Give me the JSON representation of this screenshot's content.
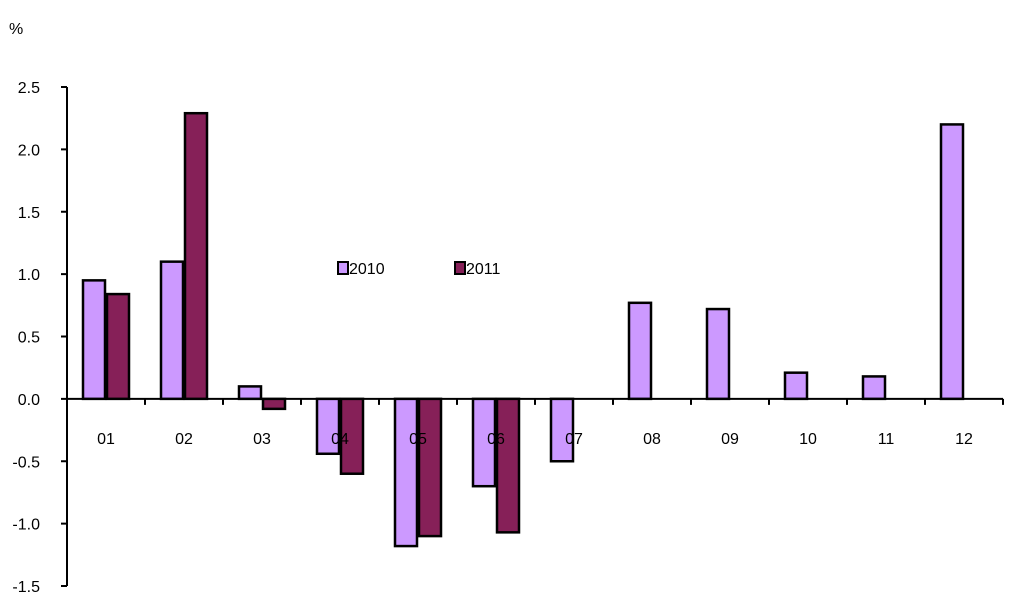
{
  "chart_data": {
    "type": "bar",
    "ylabel": "%",
    "ylim": [
      -1.5,
      2.5
    ],
    "yticks": [
      "-1.5",
      "-1.0",
      "-0.5",
      "0.0",
      "0.5",
      "1.0",
      "1.5",
      "2.0",
      "2.5"
    ],
    "categories": [
      "01",
      "02",
      "03",
      "04",
      "05",
      "06",
      "07",
      "08",
      "09",
      "10",
      "11",
      "12"
    ],
    "series": [
      {
        "name": "2010",
        "color": "#cc99ff",
        "values": [
          0.95,
          1.1,
          0.1,
          -0.44,
          -1.18,
          -0.7,
          -0.5,
          0.77,
          0.72,
          0.21,
          0.18,
          2.2
        ]
      },
      {
        "name": "2011",
        "color": "#862058",
        "values": [
          0.84,
          2.29,
          -0.08,
          -0.6,
          -1.1,
          -1.07,
          null,
          null,
          null,
          null,
          null,
          null
        ]
      }
    ],
    "grid": false,
    "legend_position": "center"
  }
}
